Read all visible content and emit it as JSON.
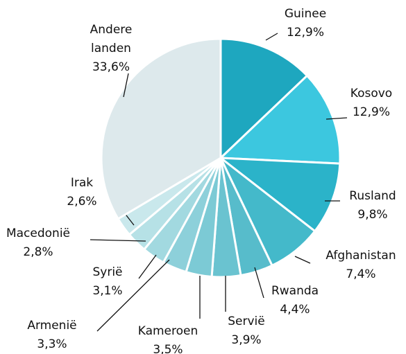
{
  "chart_data": {
    "type": "pie",
    "categories": [
      "Guinee",
      "Kosovo",
      "Rusland",
      "Afghanistan",
      "Rwanda",
      "Servië",
      "Kameroen",
      "Armenië",
      "Syrië",
      "Macedonië",
      "Irak",
      "Andere landen"
    ],
    "values": [
      12.9,
      12.9,
      9.8,
      7.4,
      4.4,
      3.9,
      3.5,
      3.3,
      3.1,
      2.8,
      2.6,
      33.6
    ],
    "value_labels": [
      "12,9%",
      "12,9%",
      "9,8%",
      "7,4%",
      "4,4%",
      "3,9%",
      "3,5%",
      "3,3%",
      "3,1%",
      "2,8%",
      "2,6%",
      "33,6%"
    ],
    "colors": [
      "#1ea7bf",
      "#3cc7df",
      "#2bb3c9",
      "#44b9ca",
      "#57bccb",
      "#6ac3d0",
      "#7ccad5",
      "#8dd0da",
      "#a2d9e0",
      "#b6e1e6",
      "#c9e8ec",
      "#dde9ec"
    ]
  }
}
